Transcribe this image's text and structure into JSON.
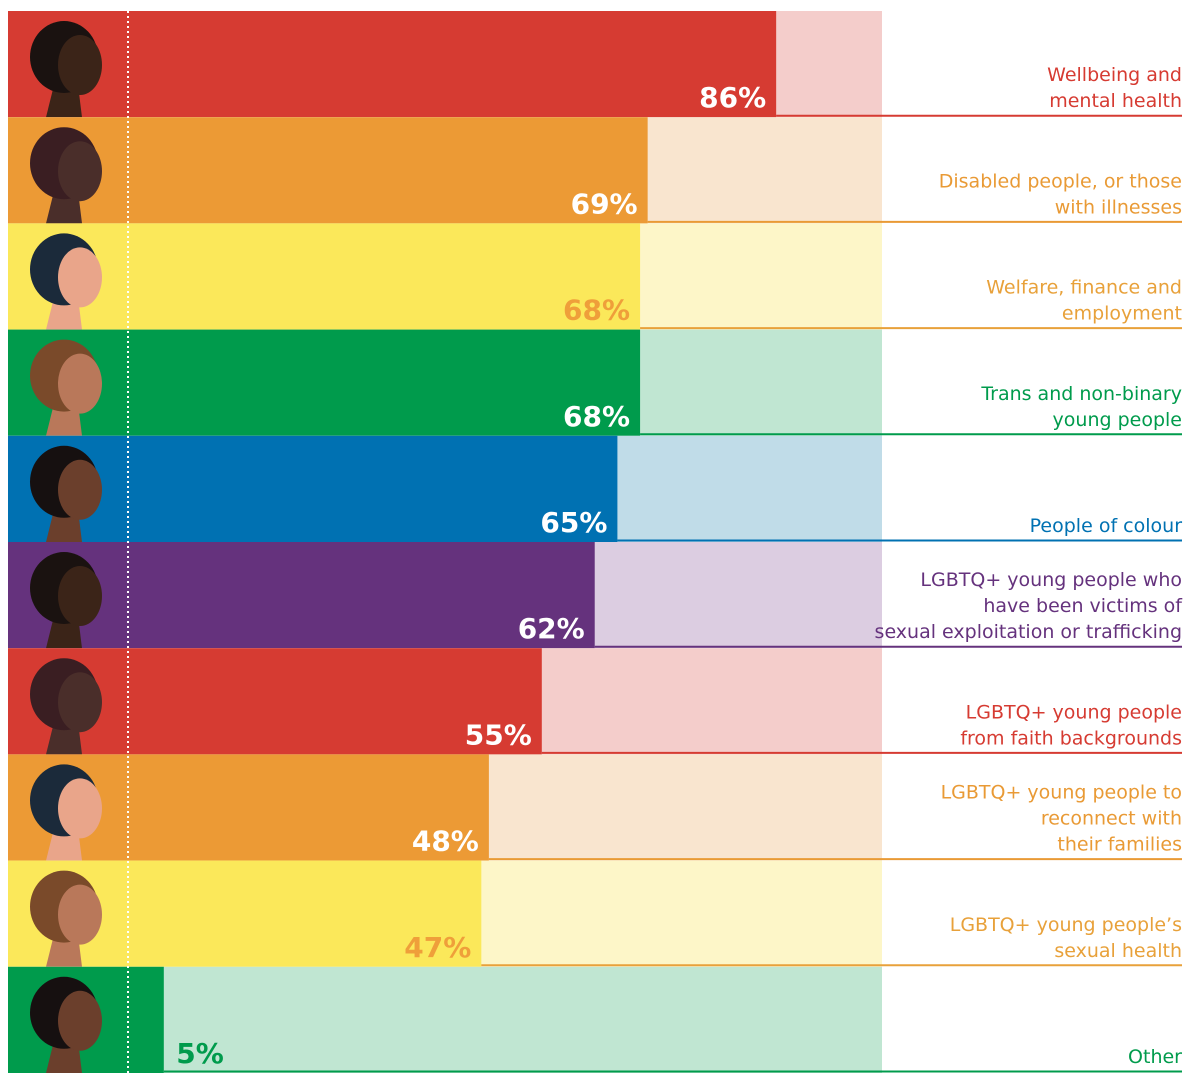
{
  "chart_data": {
    "type": "bar",
    "orientation": "horizontal",
    "categories": [
      "Wellbeing and\nmental health",
      "Disabled people, or those\nwith illnesses",
      "Welfare, finance and\nemployment",
      "Trans and non-binary\nyoung people",
      "People of colour",
      "LGBTQ+ young people who\nhave been victims of\nsexual exploitation or trafficking",
      "LGBTQ+ young people\nfrom faith backgrounds",
      "LGBTQ+ young people to\nreconnect with\ntheir families",
      "LGBTQ+ young people’s\nsexual health",
      "Other"
    ],
    "values": [
      86,
      69,
      68,
      68,
      65,
      62,
      55,
      48,
      47,
      5
    ],
    "value_labels": [
      "86%",
      "69%",
      "68%",
      "68%",
      "65%",
      "62%",
      "55%",
      "48%",
      "47%",
      "5%"
    ],
    "xlim": [
      0,
      100
    ],
    "bar_colors": [
      "#d63b32",
      "#ec9a35",
      "#fbe85a",
      "#009b4c",
      "#0071b2",
      "#65327d",
      "#d63b32",
      "#ec9a35",
      "#fbe85a",
      "#009b4c"
    ],
    "track_colors": [
      "#f4cdcb",
      "#f9e5cf",
      "#fdf6c8",
      "#c0e6d2",
      "#c0dce8",
      "#dccde1",
      "#f4cdcb",
      "#f9e5cf",
      "#fdf6c8",
      "#c0e6d2"
    ],
    "label_colors": [
      "#d63b32",
      "#e99a35",
      "#e8a13a",
      "#009b4c",
      "#0071b2",
      "#65327d",
      "#d63b32",
      "#e99a35",
      "#e8a13a",
      "#009b4c"
    ],
    "value_label_colors": [
      "#ffffff",
      "#ffffff",
      "#ef9f3a",
      "#ffffff",
      "#ffffff",
      "#ffffff",
      "#ffffff",
      "#ffffff",
      "#ef9f3a",
      "#009b4c"
    ]
  }
}
